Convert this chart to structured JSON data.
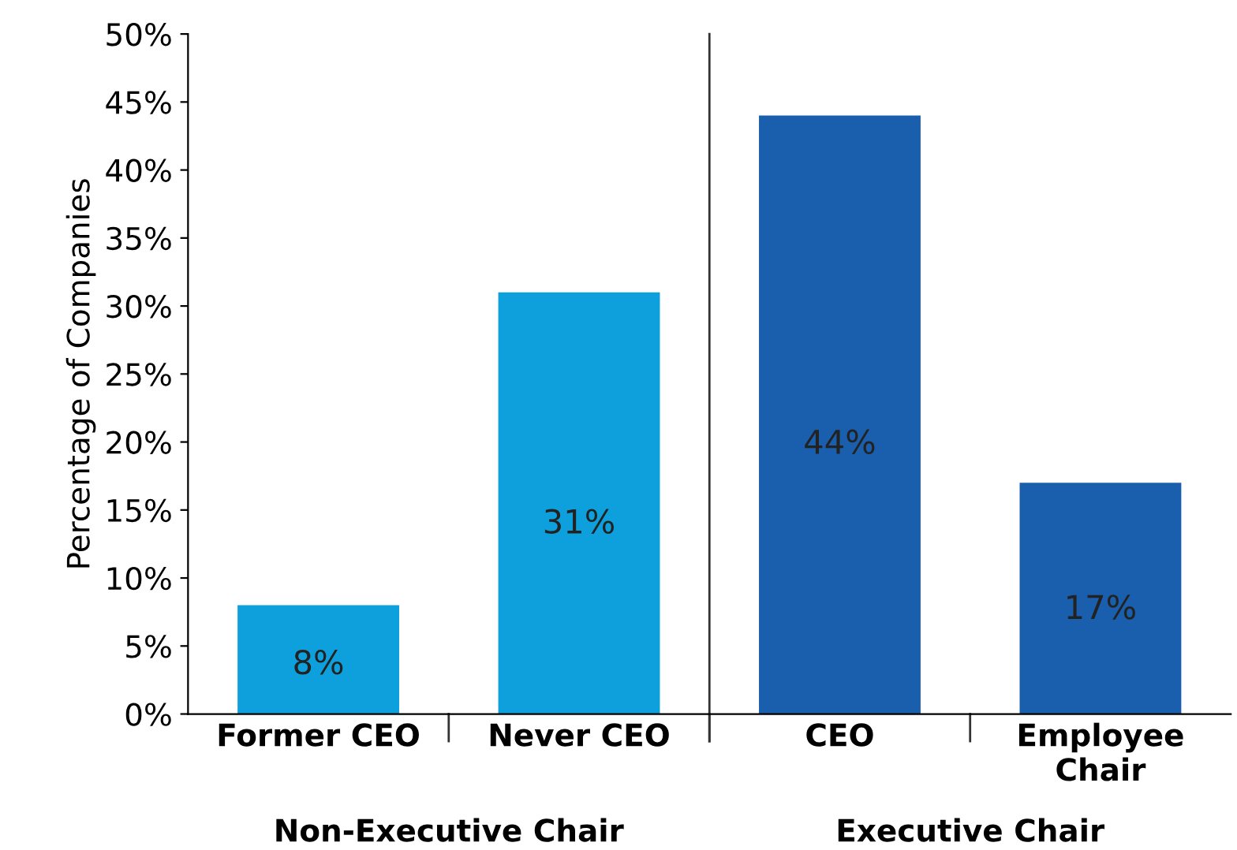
{
  "chart_data": {
    "type": "bar",
    "ylabel": "Percentage of Companies",
    "categories": [
      "Former CEO",
      "Never CEO",
      "CEO",
      "Employee\nChair"
    ],
    "values": [
      8,
      31,
      44,
      17
    ],
    "value_labels": [
      "8%",
      "31%",
      "44%",
      "17%"
    ],
    "colors": [
      "#0ea0dc",
      "#0ea0dc",
      "#1a5fad",
      "#1a5fad"
    ],
    "ylim": [
      0,
      50
    ],
    "yticks": [
      {
        "value": 0,
        "label": "0%"
      },
      {
        "value": 5,
        "label": "5%"
      },
      {
        "value": 10,
        "label": "10%"
      },
      {
        "value": 15,
        "label": "15%"
      },
      {
        "value": 20,
        "label": "20%"
      },
      {
        "value": 25,
        "label": "25%"
      },
      {
        "value": 30,
        "label": "30%"
      },
      {
        "value": 35,
        "label": "35%"
      },
      {
        "value": 40,
        "label": "40%"
      },
      {
        "value": 45,
        "label": "45%"
      },
      {
        "value": 50,
        "label": "50%"
      }
    ],
    "annotations": [
      "Non-Executive Chair",
      "Executive Chair"
    ],
    "grid": false,
    "legend": false
  }
}
